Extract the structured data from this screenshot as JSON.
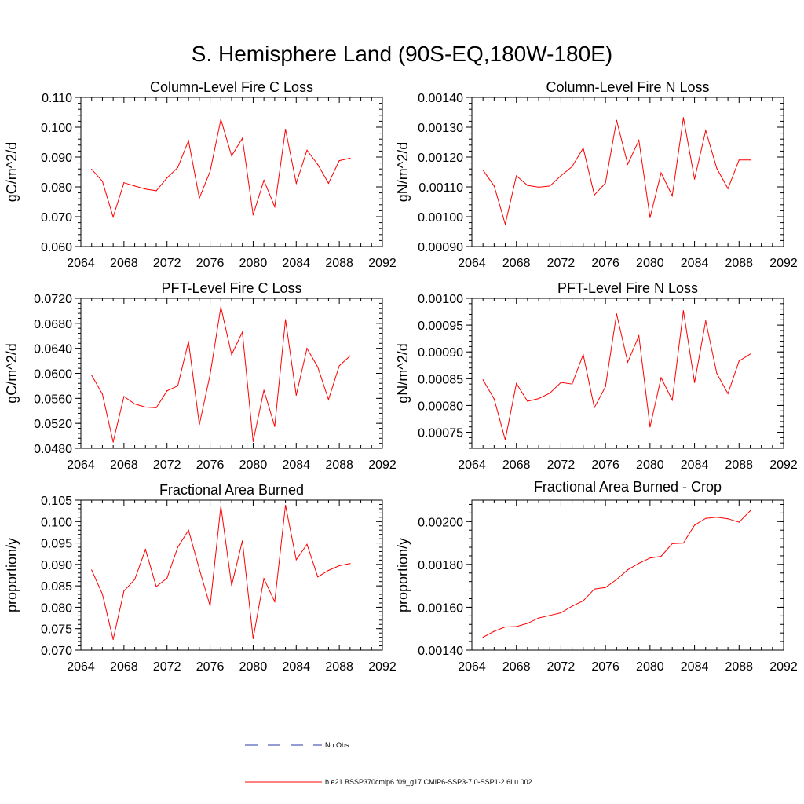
{
  "figure": {
    "title": "S. Hemisphere Land (90S-EQ,180W-180E)"
  },
  "legend": {
    "entries": [
      {
        "label": "No Obs",
        "color": "#2b3aa8",
        "style": "dashed"
      },
      {
        "label": "b.e21.BSSP370cmip6.f09_g17.CMIP6-SSP3-7.0-SSP1-2.6Lu.002",
        "color": "#ff0000",
        "style": "solid"
      }
    ]
  },
  "chart_data": [
    {
      "type": "line",
      "title": "Column-Level Fire C Loss",
      "xlabel": "",
      "ylabel": "gC/m^2/d",
      "xlim": [
        2064,
        2092
      ],
      "ylim": [
        0.06,
        0.11
      ],
      "xticks": [
        "2064",
        "2068",
        "2072",
        "2076",
        "2080",
        "2084",
        "2088",
        "2092"
      ],
      "yticks": [
        "0.060",
        "0.070",
        "0.080",
        "0.090",
        "0.100",
        "0.110"
      ],
      "yminor_step": 0.002,
      "x": [
        2065,
        2066,
        2067,
        2068,
        2069,
        2070,
        2071,
        2072,
        2073,
        2074,
        2075,
        2076,
        2077,
        2078,
        2079,
        2080,
        2081,
        2082,
        2083,
        2084,
        2085,
        2086,
        2087,
        2088,
        2089
      ],
      "series": [
        {
          "color": "#ff0000",
          "values": [
            0.0859,
            0.0819,
            0.0699,
            0.0814,
            0.0803,
            0.0793,
            0.0787,
            0.083,
            0.0865,
            0.0955,
            0.0762,
            0.0852,
            0.1026,
            0.0904,
            0.0963,
            0.0706,
            0.0822,
            0.0733,
            0.0993,
            0.0812,
            0.0923,
            0.0875,
            0.0812,
            0.0888,
            0.0896
          ]
        }
      ]
    },
    {
      "type": "line",
      "title": "Column-Level Fire N Loss",
      "xlabel": "",
      "ylabel": "gN/m^2/d",
      "xlim": [
        2064,
        2092
      ],
      "ylim": [
        0.0009,
        0.0014
      ],
      "xticks": [
        "2064",
        "2068",
        "2072",
        "2076",
        "2080",
        "2084",
        "2088",
        "2092"
      ],
      "yticks": [
        "0.00090",
        "0.00100",
        "0.00110",
        "0.00120",
        "0.00130",
        "0.00140"
      ],
      "yminor_step": 2e-05,
      "x": [
        2065,
        2066,
        2067,
        2068,
        2069,
        2070,
        2071,
        2072,
        2073,
        2074,
        2075,
        2076,
        2077,
        2078,
        2079,
        2080,
        2081,
        2082,
        2083,
        2084,
        2085,
        2086,
        2087,
        2088,
        2089
      ],
      "series": [
        {
          "color": "#ff0000",
          "values": [
            0.001156,
            0.001103,
            0.000975,
            0.001137,
            0.001105,
            0.001099,
            0.001103,
            0.001137,
            0.001168,
            0.00123,
            0.001073,
            0.001113,
            0.001323,
            0.001176,
            0.001256,
            0.000997,
            0.001147,
            0.00107,
            0.001332,
            0.001126,
            0.001289,
            0.001162,
            0.001094,
            0.00119,
            0.00119
          ]
        }
      ]
    },
    {
      "type": "line",
      "title": "PFT-Level Fire C Loss",
      "xlabel": "",
      "ylabel": "gC/m^2/d",
      "xlim": [
        2064,
        2092
      ],
      "ylim": [
        0.048,
        0.072
      ],
      "xticks": [
        "2064",
        "2068",
        "2072",
        "2076",
        "2080",
        "2084",
        "2088",
        "2092"
      ],
      "yticks": [
        "0.0480",
        "0.0520",
        "0.0560",
        "0.0600",
        "0.0640",
        "0.0680",
        "0.0720"
      ],
      "yminor_step": 0.0008,
      "x": [
        2065,
        2066,
        2067,
        2068,
        2069,
        2070,
        2071,
        2072,
        2073,
        2074,
        2075,
        2076,
        2077,
        2078,
        2079,
        2080,
        2081,
        2082,
        2083,
        2084,
        2085,
        2086,
        2087,
        2088,
        2089
      ],
      "series": [
        {
          "color": "#ff0000",
          "values": [
            0.0597,
            0.0567,
            0.049,
            0.0563,
            0.0551,
            0.0546,
            0.0545,
            0.0572,
            0.058,
            0.0651,
            0.0518,
            0.0598,
            0.0706,
            0.063,
            0.0666,
            0.0491,
            0.0573,
            0.0515,
            0.0686,
            0.0565,
            0.064,
            0.061,
            0.0558,
            0.0612,
            0.0628
          ]
        }
      ]
    },
    {
      "type": "line",
      "title": "PFT-Level Fire N Loss",
      "xlabel": "",
      "ylabel": "gN/m^2/d",
      "xlim": [
        2064,
        2092
      ],
      "ylim": [
        0.00072,
        0.001
      ],
      "xticks": [
        "2064",
        "2068",
        "2072",
        "2076",
        "2080",
        "2084",
        "2088",
        "2092"
      ],
      "yticks": [
        "0.00075",
        "0.00080",
        "0.00085",
        "0.00090",
        "0.00095",
        "0.00100"
      ],
      "yminor_step": 1e-05,
      "x": [
        2065,
        2066,
        2067,
        2068,
        2069,
        2070,
        2071,
        2072,
        2073,
        2074,
        2075,
        2076,
        2077,
        2078,
        2079,
        2080,
        2081,
        2082,
        2083,
        2084,
        2085,
        2086,
        2087,
        2088,
        2089
      ],
      "series": [
        {
          "color": "#ff0000",
          "values": [
            0.000848,
            0.000812,
            0.000736,
            0.000841,
            0.000808,
            0.000813,
            0.000823,
            0.000843,
            0.00084,
            0.000895,
            0.000796,
            0.000835,
            0.000971,
            0.000881,
            0.00093,
            0.00076,
            0.000852,
            0.00081,
            0.000977,
            0.000843,
            0.000958,
            0.00086,
            0.000822,
            0.000883,
            0.000896
          ]
        }
      ]
    },
    {
      "type": "line",
      "title": "Fractional Area Burned",
      "xlabel": "",
      "ylabel": "proportion/y",
      "xlim": [
        2064,
        2092
      ],
      "ylim": [
        0.07,
        0.105
      ],
      "xticks": [
        "2064",
        "2068",
        "2072",
        "2076",
        "2080",
        "2084",
        "2088",
        "2092"
      ],
      "yticks": [
        "0.070",
        "0.075",
        "0.080",
        "0.085",
        "0.090",
        "0.095",
        "0.100",
        "0.105"
      ],
      "yminor_step": 0.001,
      "x": [
        2065,
        2066,
        2067,
        2068,
        2069,
        2070,
        2071,
        2072,
        2073,
        2074,
        2075,
        2076,
        2077,
        2078,
        2079,
        2080,
        2081,
        2082,
        2083,
        2084,
        2085,
        2086,
        2087,
        2088,
        2089
      ],
      "series": [
        {
          "color": "#ff0000",
          "values": [
            0.0887,
            0.0831,
            0.0725,
            0.0838,
            0.0865,
            0.0935,
            0.0848,
            0.0868,
            0.094,
            0.098,
            0.0889,
            0.0803,
            0.1036,
            0.0851,
            0.0955,
            0.0727,
            0.0867,
            0.0813,
            0.1038,
            0.0911,
            0.0947,
            0.0871,
            0.0886,
            0.0897,
            0.0902
          ]
        }
      ]
    },
    {
      "type": "line",
      "title": "Fractional Area Burned - Crop",
      "xlabel": "",
      "ylabel": "proportion/y",
      "xlim": [
        2064,
        2092
      ],
      "ylim": [
        0.0014,
        0.0021
      ],
      "xticks": [
        "2064",
        "2068",
        "2072",
        "2076",
        "2080",
        "2084",
        "2088",
        "2092"
      ],
      "yticks": [
        "0.00140",
        "0.00160",
        "0.00180",
        "0.00200"
      ],
      "yminor_step": 4e-05,
      "x": [
        2065,
        2066,
        2067,
        2068,
        2069,
        2070,
        2071,
        2072,
        2073,
        2074,
        2075,
        2076,
        2077,
        2078,
        2079,
        2080,
        2081,
        2082,
        2083,
        2084,
        2085,
        2086,
        2087,
        2088,
        2089
      ],
      "series": [
        {
          "color": "#ff0000",
          "values": [
            0.00146,
            0.001488,
            0.001508,
            0.00151,
            0.001525,
            0.00155,
            0.001562,
            0.001574,
            0.001605,
            0.00163,
            0.001685,
            0.001692,
            0.00173,
            0.001775,
            0.001805,
            0.00183,
            0.001838,
            0.001897,
            0.0019,
            0.001983,
            0.002015,
            0.00202,
            0.002013,
            0.001997,
            0.00205
          ]
        }
      ]
    }
  ]
}
